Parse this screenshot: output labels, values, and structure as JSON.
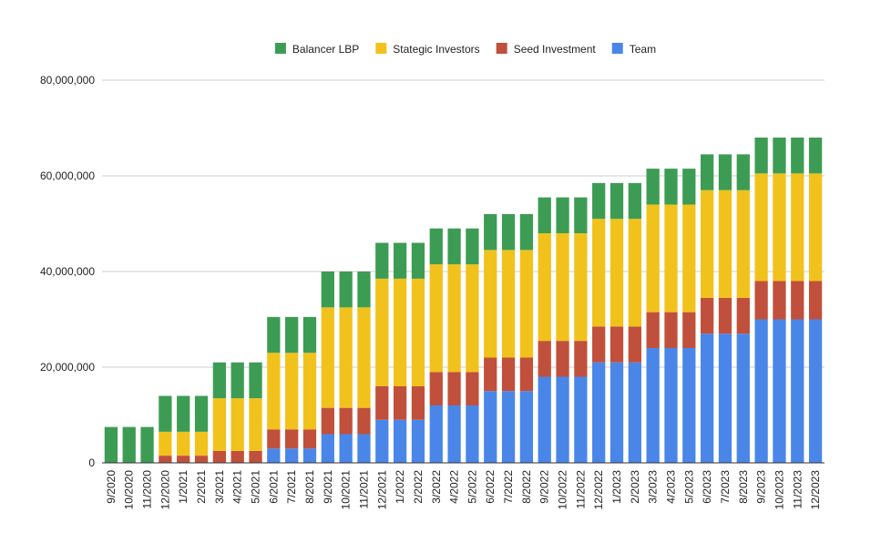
{
  "chart_data": {
    "type": "bar",
    "stacked": true,
    "title": "",
    "xlabel": "",
    "ylabel": "",
    "ylim": [
      0,
      80000000
    ],
    "yticks": [
      0,
      20000000,
      40000000,
      60000000,
      80000000
    ],
    "ytick_labels": [
      "0",
      "20,000,000",
      "40,000,000",
      "60,000,000",
      "80,000,000"
    ],
    "grid": true,
    "legend_position": "top",
    "categories": [
      "9/2020",
      "10/2020",
      "11/2020",
      "12/2020",
      "1/2021",
      "2/2021",
      "3/2021",
      "4/2021",
      "5/2021",
      "6/2021",
      "7/2021",
      "8/2021",
      "9/2021",
      "10/2021",
      "11/2021",
      "12/2021",
      "1/2022",
      "2/2022",
      "3/2022",
      "4/2022",
      "5/2022",
      "6/2022",
      "7/2022",
      "8/2022",
      "9/2022",
      "10/2022",
      "11/2022",
      "12/2022",
      "1/2023",
      "2/2023",
      "3/2023",
      "4/2023",
      "5/2023",
      "6/2023",
      "7/2023",
      "8/2023",
      "9/2023",
      "10/2023",
      "11/2023",
      "12/2023"
    ],
    "series": [
      {
        "name": "Team",
        "color": "#4a86e8",
        "values": [
          0,
          0,
          0,
          0,
          0,
          0,
          0,
          0,
          0,
          3000000,
          3000000,
          3000000,
          6000000,
          6000000,
          6000000,
          9000000,
          9000000,
          9000000,
          12000000,
          12000000,
          12000000,
          15000000,
          15000000,
          15000000,
          18000000,
          18000000,
          18000000,
          21000000,
          21000000,
          21000000,
          24000000,
          24000000,
          24000000,
          27000000,
          27000000,
          27000000,
          30000000,
          30000000,
          30000000,
          30000000
        ]
      },
      {
        "name": "Seed Investment",
        "color": "#c0503c",
        "values": [
          0,
          0,
          0,
          1500000,
          1500000,
          1500000,
          2500000,
          2500000,
          2500000,
          4000000,
          4000000,
          4000000,
          5500000,
          5500000,
          5500000,
          7000000,
          7000000,
          7000000,
          7000000,
          7000000,
          7000000,
          7000000,
          7000000,
          7000000,
          7500000,
          7500000,
          7500000,
          7500000,
          7500000,
          7500000,
          7500000,
          7500000,
          7500000,
          7500000,
          7500000,
          7500000,
          8000000,
          8000000,
          8000000,
          8000000
        ]
      },
      {
        "name": "Stategic Investors",
        "color": "#f1c21b",
        "values": [
          0,
          0,
          0,
          5000000,
          5000000,
          5000000,
          11000000,
          11000000,
          11000000,
          16000000,
          16000000,
          16000000,
          21000000,
          21000000,
          21000000,
          22500000,
          22500000,
          22500000,
          22500000,
          22500000,
          22500000,
          22500000,
          22500000,
          22500000,
          22500000,
          22500000,
          22500000,
          22500000,
          22500000,
          22500000,
          22500000,
          22500000,
          22500000,
          22500000,
          22500000,
          22500000,
          22500000,
          22500000,
          22500000,
          22500000
        ]
      },
      {
        "name": "Balancer LBP",
        "color": "#3d9c54",
        "values": [
          7500000,
          7500000,
          7500000,
          7500000,
          7500000,
          7500000,
          7500000,
          7500000,
          7500000,
          7500000,
          7500000,
          7500000,
          7500000,
          7500000,
          7500000,
          7500000,
          7500000,
          7500000,
          7500000,
          7500000,
          7500000,
          7500000,
          7500000,
          7500000,
          7500000,
          7500000,
          7500000,
          7500000,
          7500000,
          7500000,
          7500000,
          7500000,
          7500000,
          7500000,
          7500000,
          7500000,
          7500000,
          7500000,
          7500000,
          7500000
        ]
      }
    ],
    "legend_order": [
      "Balancer LBP",
      "Stategic Investors",
      "Seed Investment",
      "Team"
    ]
  }
}
